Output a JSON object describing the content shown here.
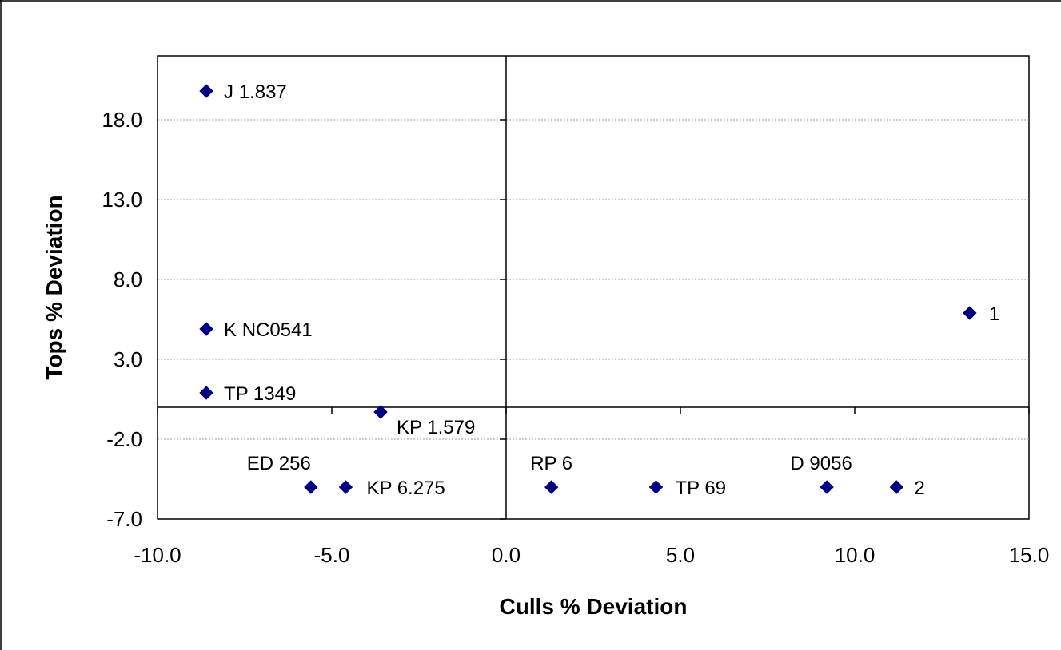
{
  "chart_data": {
    "type": "scatter",
    "xlabel": "Culls % Deviation",
    "ylabel": "Tops % Deviation",
    "xlim": [
      -10,
      15
    ],
    "ylim": [
      -7,
      22
    ],
    "xticks": [
      -10,
      -5,
      0,
      5,
      10,
      15
    ],
    "xtick_labels": [
      "-10.0",
      "-5.0",
      "0.0",
      "5.0",
      "10.0",
      "15.0"
    ],
    "yticks": [
      -7,
      -2,
      3,
      8,
      13,
      18
    ],
    "ytick_labels": [
      "-7.0",
      "-2.0",
      "3.0",
      "8.0",
      "13.0",
      "18.0"
    ],
    "grid": "horizontal",
    "legend": "none",
    "marker": "diamond",
    "marker_color": "#000080",
    "points": [
      {
        "label": "J 1.837",
        "x": -8.6,
        "y": 19.8
      },
      {
        "label": "K NC0541",
        "x": -8.6,
        "y": 4.9
      },
      {
        "label": "TP 1349",
        "x": -8.6,
        "y": 0.9
      },
      {
        "label": "KP 1.579",
        "x": -3.6,
        "y": -0.3
      },
      {
        "label": "ED 256",
        "x": -5.6,
        "y": -5.0
      },
      {
        "label": "KP 6.275",
        "x": -4.6,
        "y": -5.0
      },
      {
        "label": "RP 6",
        "x": 1.3,
        "y": -5.0
      },
      {
        "label": "TP 69",
        "x": 4.3,
        "y": -5.0
      },
      {
        "label": "D 9056",
        "x": 9.2,
        "y": -5.0
      },
      {
        "label": "2",
        "x": 11.2,
        "y": -5.0
      },
      {
        "label": "1",
        "x": 13.3,
        "y": 5.9
      }
    ]
  }
}
